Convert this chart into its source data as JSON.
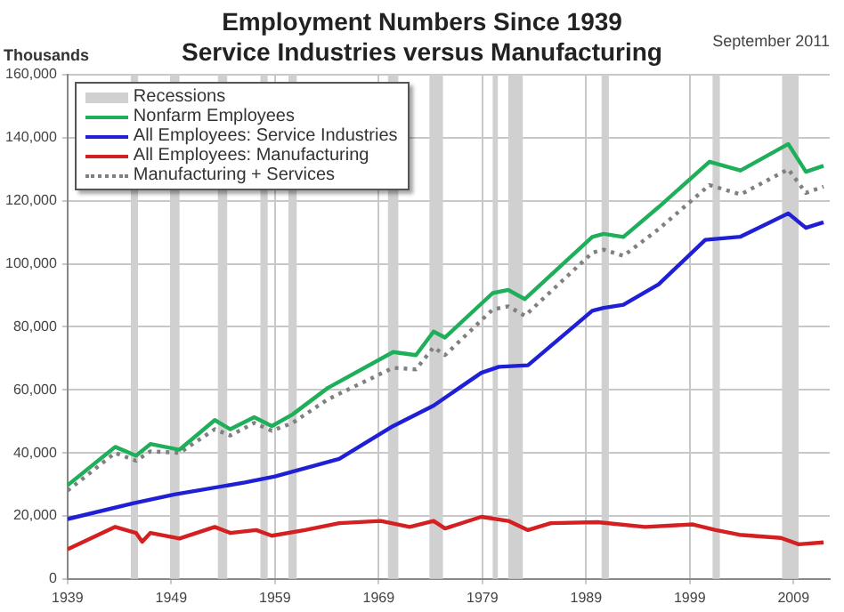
{
  "chart_data": {
    "type": "line",
    "title": "Employment Numbers Since 1939",
    "subtitle": "Service Industries versus Manufacturing",
    "ylabel": "Thousands",
    "annotations": [
      "September 2011"
    ],
    "xlim": [
      1939,
      2012.5
    ],
    "xticks": [
      1939,
      1949,
      1959,
      1969,
      1979,
      1989,
      1999,
      2009
    ],
    "ylim": [
      0,
      160000
    ],
    "yticks": [
      0,
      {
        "value": 20000,
        "label": "20,000"
      },
      {
        "value": 40000,
        "label": "40,000"
      },
      {
        "value": 60000,
        "label": "60,000"
      },
      {
        "value": 80000,
        "label": "80,000"
      },
      {
        "value": 100000,
        "label": "100,000"
      },
      {
        "value": 120000,
        "label": "120,000"
      },
      {
        "value": 140000,
        "label": "140,000"
      },
      {
        "value": 160000,
        "label": "160,000"
      }
    ],
    "grid": true,
    "legend": "top left",
    "marker": "none",
    "bands": [
      {
        "axis": "x",
        "from": 1945.1,
        "to": 1945.8,
        "label": "Recessions",
        "color": "#d0d0d0"
      },
      {
        "axis": "x",
        "from": 1948.9,
        "to": 1949.8,
        "color": "#d0d0d0"
      },
      {
        "axis": "x",
        "from": 1953.5,
        "to": 1954.4,
        "color": "#d0d0d0"
      },
      {
        "axis": "x",
        "from": 1957.6,
        "to": 1958.3,
        "color": "#d0d0d0"
      },
      {
        "axis": "x",
        "from": 1960.3,
        "to": 1961.1,
        "color": "#d0d0d0"
      },
      {
        "axis": "x",
        "from": 1969.9,
        "to": 1970.9,
        "color": "#d0d0d0"
      },
      {
        "axis": "x",
        "from": 1973.9,
        "to": 1975.2,
        "color": "#d0d0d0"
      },
      {
        "axis": "x",
        "from": 1980.0,
        "to": 1980.5,
        "color": "#d0d0d0"
      },
      {
        "axis": "x",
        "from": 1981.5,
        "to": 1982.9,
        "color": "#d0d0d0"
      },
      {
        "axis": "x",
        "from": 1990.5,
        "to": 1991.2,
        "color": "#d0d0d0"
      },
      {
        "axis": "x",
        "from": 2001.2,
        "to": 2001.9,
        "color": "#d0d0d0"
      },
      {
        "axis": "x",
        "from": 2007.9,
        "to": 2009.5,
        "color": "#d0d0d0"
      }
    ],
    "series": [
      {
        "name": "Nonfarm Employees",
        "color": "#1fae5a",
        "line_style": "solid",
        "x": [
          1939,
          1943.6,
          1945.6,
          1947,
          1949.8,
          1953.2,
          1954.7,
          1957,
          1958.7,
          1960.7,
          1964.1,
          1970.4,
          1972.6,
          1974.3,
          1975.4,
          1980,
          1981.5,
          1983.1,
          1989.6,
          1990.7,
          1992.6,
          1996,
          2000.9,
          2003.9,
          2008.5,
          2010.2,
          2011.9
        ],
        "values": [
          29700,
          41900,
          39100,
          42800,
          41000,
          50400,
          47500,
          51300,
          48500,
          52200,
          60600,
          72000,
          71000,
          78500,
          76600,
          90700,
          91700,
          88800,
          108500,
          109500,
          108500,
          118000,
          132400,
          129600,
          138000,
          129200,
          131100
        ]
      },
      {
        "name": "All Employees: Service Industries",
        "color": "#1f1fd6",
        "line_style": "solid",
        "x": [
          1939,
          1945.3,
          1949.3,
          1956.1,
          1959,
          1965.2,
          1970.4,
          1974.3,
          1978.9,
          1980.6,
          1983.4,
          1989.6,
          1990.7,
          1992.6,
          1996,
          2000.5,
          2003.9,
          2008.5,
          2010.2,
          2011.9
        ],
        "values": [
          19000,
          24000,
          26800,
          30600,
          32500,
          38100,
          48500,
          55000,
          65400,
          67300,
          67800,
          85100,
          86000,
          87000,
          93500,
          107600,
          108600,
          116000,
          111400,
          113200
        ]
      },
      {
        "name": "All Employees: Manufacturing",
        "color": "#d42020",
        "line_style": "solid",
        "x": [
          1939,
          1943.6,
          1945.6,
          1946.2,
          1947,
          1949.8,
          1953.2,
          1954.7,
          1957.2,
          1958.7,
          1961.9,
          1965.2,
          1969.2,
          1972,
          1974.3,
          1975.4,
          1978.9,
          1981.5,
          1983.4,
          1985.6,
          1990.1,
          1994.7,
          1999.3,
          2001.5,
          2003.8,
          2007.8,
          2009.5,
          2011.9
        ],
        "values": [
          9400,
          16500,
          14600,
          11800,
          14600,
          12800,
          16500,
          14600,
          15500,
          13700,
          15500,
          17700,
          18400,
          16500,
          18400,
          16000,
          19700,
          18400,
          15500,
          17700,
          18000,
          16500,
          17300,
          15500,
          14000,
          13000,
          11000,
          11600
        ]
      },
      {
        "name": "Manufacturing + Services",
        "color": "#808080",
        "line_style": "dotted",
        "x": [
          1939,
          1943.6,
          1945.6,
          1947,
          1949.8,
          1953.2,
          1954.7,
          1957,
          1958.7,
          1960.7,
          1964.1,
          1970.4,
          1972.6,
          1974.3,
          1975.4,
          1980,
          1981.5,
          1983.1,
          1989.6,
          1990.7,
          1992.6,
          1996,
          2000.9,
          2003.9,
          2008.5,
          2010.2,
          2011.9
        ],
        "values": [
          28000,
          40000,
          37500,
          40500,
          40000,
          47500,
          45500,
          49500,
          47000,
          49500,
          57000,
          67000,
          66500,
          73500,
          71000,
          85500,
          86500,
          83500,
          103500,
          104500,
          102500,
          111000,
          125000,
          122000,
          130000,
          122500,
          124500
        ]
      }
    ]
  }
}
